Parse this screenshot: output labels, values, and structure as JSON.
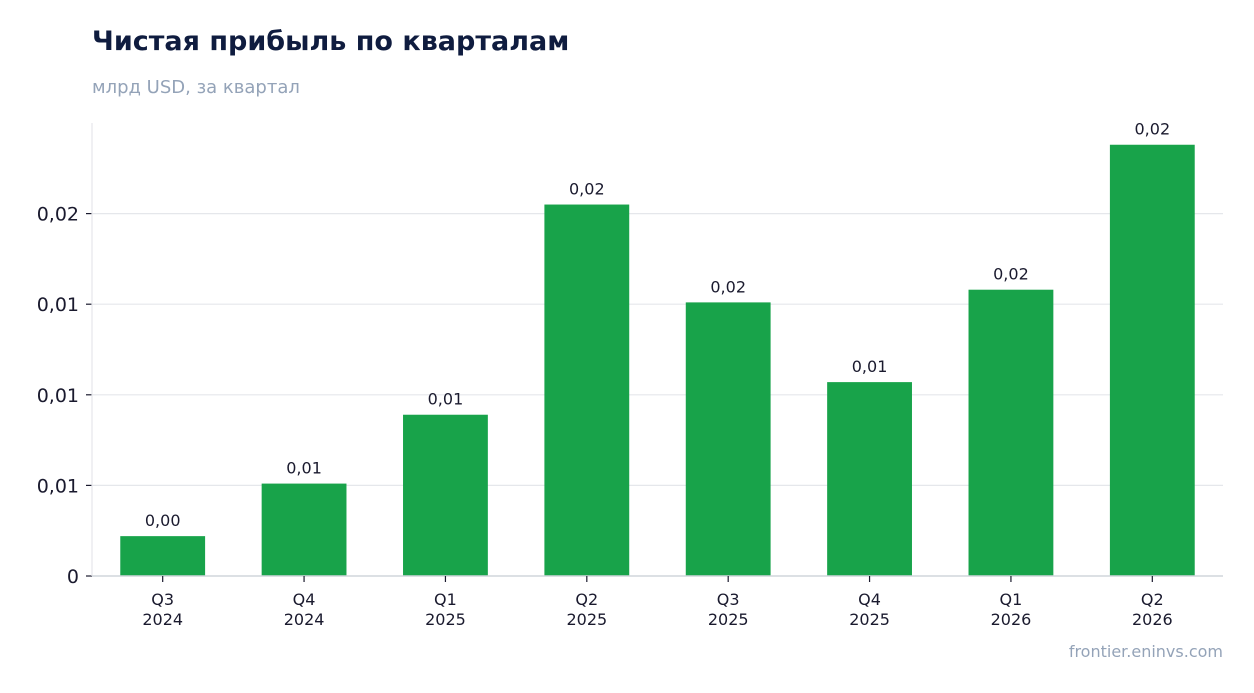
{
  "header": {
    "title": "Чистая прибыль по кварталам",
    "subtitle": "млрд USD, за квартал"
  },
  "footer": {
    "source": "frontier.eninvs.com"
  },
  "colors": {
    "bar": "#18a34a",
    "grid": "#e5e7eb",
    "axis": "#d1d5db",
    "text": "#1a1a2e"
  },
  "chart_data": {
    "type": "bar",
    "title": "Чистая прибыль по кварталам",
    "subtitle": "млрд USD, за квартал",
    "categories": [
      [
        "Q3",
        "2024"
      ],
      [
        "Q4",
        "2024"
      ],
      [
        "Q1",
        "2025"
      ],
      [
        "Q2",
        "2025"
      ],
      [
        "Q3",
        "2025"
      ],
      [
        "Q4",
        "2025"
      ],
      [
        "Q1",
        "2026"
      ],
      [
        "Q2",
        "2026"
      ]
    ],
    "values": [
      0.0022,
      0.0051,
      0.0089,
      0.0205,
      0.0151,
      0.0107,
      0.0158,
      0.0238
    ],
    "data_labels": [
      "0,00",
      "0,01",
      "0,01",
      "0,02",
      "0,02",
      "0,01",
      "0,02",
      "0,02"
    ],
    "y_ticks": [
      0,
      0.005,
      0.01,
      0.015,
      0.02
    ],
    "y_tick_labels": [
      "0",
      "0,01",
      "0,01",
      "0,01",
      "0,02"
    ],
    "ylim": [
      0,
      0.025
    ],
    "grid": true,
    "legend": "none"
  }
}
